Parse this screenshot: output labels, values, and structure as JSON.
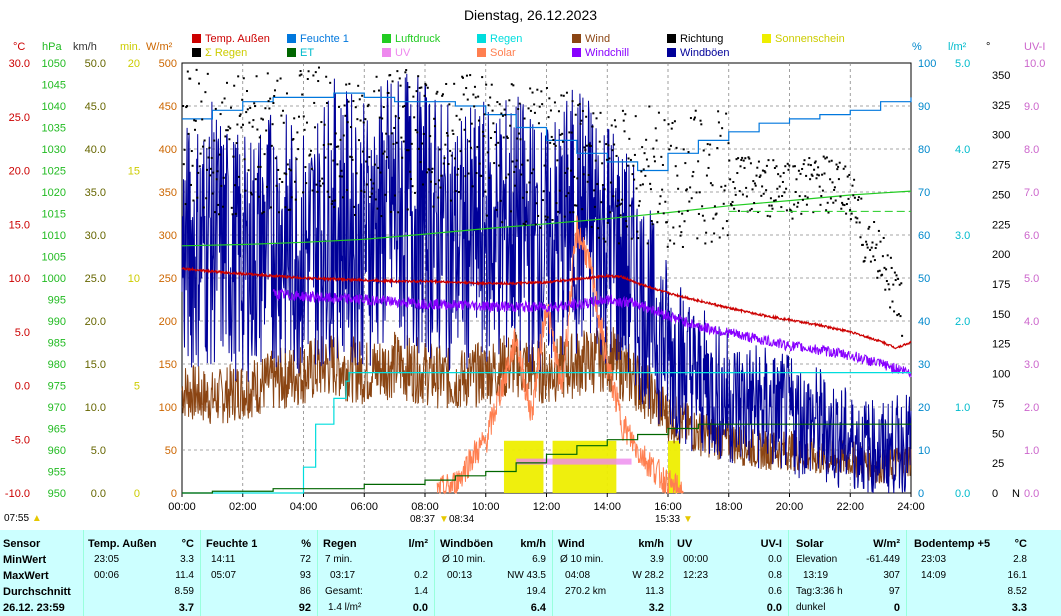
{
  "title": "Dienstag, 26.12.2023",
  "legend": [
    {
      "label": "Temp. Außen",
      "color": "#cc0000"
    },
    {
      "label": "Feuchte 1",
      "color": "#0077dd"
    },
    {
      "label": "Luftdruck",
      "color": "#22cc22"
    },
    {
      "label": "Regen",
      "color": "#00dddd"
    },
    {
      "label": "Wind",
      "color": "#8b4513"
    },
    {
      "label": "Richtung",
      "color": "#000000"
    },
    {
      "label": "Sonnenschein",
      "color": "#eeee00"
    },
    {
      "label": "Σ Regen",
      "color": "#000000"
    },
    {
      "label": "ET",
      "color": "#006600"
    },
    {
      "label": "UV",
      "color": "#ee88ee"
    },
    {
      "label": "Solar",
      "color": "#ff7f50"
    },
    {
      "label": "Windchill",
      "color": "#8800ff"
    },
    {
      "label": "Windböen",
      "color": "#000099"
    }
  ],
  "axis_units": {
    "temp": "°C",
    "hpa": "hPa",
    "kmh": "km/h",
    "min": "min.",
    "wm2": "W/m²",
    "pct": "%",
    "lm2": "l/m²",
    "deg": "°",
    "uvi": "UV-I"
  },
  "colors": {
    "temp": "#cc0000",
    "hpa": "#22bb22",
    "kmh": "#666600",
    "min": "#cccc00",
    "wm2": "#cc6600",
    "pct": "#0088cc",
    "lm2": "#00bbcc",
    "uvi": "#cc66cc"
  },
  "footer": {
    "sunrise_time": "07:55",
    "marker_1": "08:37",
    "marker_2": "08:34",
    "marker_3": "15:33"
  },
  "chart_data": {
    "type": "line",
    "title": "Dienstag, 26.12.2023",
    "x_range": [
      "00:00",
      "24:00"
    ],
    "x_ticks": [
      "00:00",
      "02:00",
      "04:00",
      "06:00",
      "08:00",
      "10:00",
      "12:00",
      "14:00",
      "16:00",
      "18:00",
      "20:00",
      "22:00",
      "24:00"
    ],
    "axes": {
      "temp": {
        "unit": "°C",
        "range": [
          -10,
          30
        ],
        "ticks": [
          "30.0",
          "25.0",
          "20.0",
          "15.0",
          "10.0",
          "5.0",
          "0.0",
          "-5.0",
          "-10.0"
        ]
      },
      "hpa": {
        "unit": "hPa",
        "range": [
          950,
          1050
        ],
        "ticks": [
          "1050",
          "1045",
          "1040",
          "1035",
          "1030",
          "1025",
          "1020",
          "1015",
          "1010",
          "1005",
          "1000",
          "995",
          "990",
          "985",
          "980",
          "975",
          "970",
          "965",
          "960",
          "955",
          "950"
        ]
      },
      "kmh": {
        "unit": "km/h",
        "range": [
          0,
          50
        ],
        "ticks": [
          "50.0",
          "45.0",
          "40.0",
          "35.0",
          "30.0",
          "25.0",
          "20.0",
          "15.0",
          "10.0",
          "5.0",
          "0.0"
        ]
      },
      "min": {
        "unit": "min.",
        "range": [
          0,
          20
        ],
        "ticks": [
          "20",
          "15",
          "10",
          "5",
          "0"
        ]
      },
      "wm2": {
        "unit": "W/m²",
        "range": [
          0,
          500
        ],
        "ticks": [
          "500",
          "450",
          "400",
          "350",
          "300",
          "250",
          "200",
          "150",
          "100",
          "50",
          "0"
        ]
      },
      "pct": {
        "unit": "%",
        "range": [
          0,
          100
        ],
        "ticks": [
          "100",
          "90",
          "80",
          "70",
          "60",
          "50",
          "40",
          "30",
          "20",
          "10",
          "0"
        ]
      },
      "lm2": {
        "unit": "l/m²",
        "range": [
          0,
          5
        ],
        "ticks": [
          "5.0",
          "4.0",
          "3.0",
          "2.0",
          "1.0",
          "0.0"
        ]
      },
      "deg": {
        "unit": "°",
        "range": [
          0,
          360
        ],
        "ticks": [
          "350",
          "325",
          "300",
          "275",
          "250",
          "225",
          "200",
          "175",
          "150",
          "125",
          "100",
          "75",
          "50",
          "25",
          "0"
        ],
        "bottom_label": "N"
      },
      "uvi": {
        "unit": "UV-I",
        "range": [
          0,
          10
        ],
        "ticks": [
          "10.0",
          "9.0",
          "8.0",
          "7.0",
          "6.0",
          "5.0",
          "4.0",
          "3.0",
          "2.0",
          "1.0",
          "0.0"
        ]
      }
    },
    "series": [
      {
        "name": "Temp. Außen",
        "axis": "temp",
        "x": [
          0,
          1,
          2,
          3,
          4,
          5,
          6,
          7,
          8,
          9,
          10,
          11,
          12,
          13,
          14,
          14.5,
          15,
          16,
          17,
          18,
          19,
          20,
          21,
          22,
          23,
          23.5,
          24
        ],
        "y": [
          10.9,
          10.6,
          10.4,
          10.2,
          10.0,
          9.9,
          9.8,
          9.7,
          9.7,
          9.6,
          9.5,
          9.5,
          9.6,
          9.9,
          10.2,
          10.1,
          9.5,
          8.6,
          7.9,
          7.2,
          6.6,
          6.1,
          5.6,
          5.0,
          4.1,
          3.5,
          4.0
        ]
      },
      {
        "name": "Feuchte 1",
        "axis": "pct",
        "x": [
          0,
          1,
          2,
          3,
          4,
          5,
          6,
          7,
          8,
          9,
          10,
          11,
          12,
          13,
          14,
          15,
          16,
          17,
          18,
          19,
          20,
          21,
          22,
          23,
          24
        ],
        "y": [
          87,
          89,
          91,
          92,
          92,
          93,
          92,
          91,
          91,
          90,
          88,
          85,
          82,
          79,
          77,
          75,
          79,
          82,
          84,
          86,
          87,
          88,
          89,
          91,
          92
        ]
      },
      {
        "name": "Luftdruck",
        "axis": "hpa",
        "x": [
          0,
          2,
          4,
          6,
          8,
          10,
          12,
          14,
          16,
          18,
          20,
          22,
          24
        ],
        "y": [
          1007.5,
          1007.8,
          1008.3,
          1009.0,
          1010.2,
          1011.5,
          1012.6,
          1013.8,
          1015.2,
          1016.8,
          1018.0,
          1019.3,
          1020.2
        ]
      },
      {
        "name": "Regen",
        "axis": "lm2",
        "x": [
          0,
          3.5,
          4.0,
          4.4,
          5.0,
          5.4,
          5.5,
          24
        ],
        "y": [
          0,
          0,
          0.3,
          0.8,
          1.1,
          1.3,
          1.4,
          1.4
        ]
      },
      {
        "name": "ET",
        "axis": "lm2",
        "x": [
          0,
          1,
          3,
          6,
          8,
          9,
          10,
          11,
          12,
          13,
          14,
          15,
          16,
          17,
          22,
          24
        ],
        "y": [
          0,
          0.02,
          0.05,
          0.1,
          0.15,
          0.2,
          0.25,
          0.35,
          0.45,
          0.55,
          0.62,
          0.68,
          0.75,
          0.8,
          0.8,
          0.8
        ]
      },
      {
        "name": "Windchill",
        "axis": "temp",
        "x": [
          3,
          4,
          5,
          6,
          7,
          8,
          9,
          10,
          11,
          12,
          13,
          14,
          15,
          16,
          17,
          18,
          19,
          20,
          21,
          22,
          23,
          24
        ],
        "y": [
          8.5,
          8.3,
          8.1,
          8.0,
          7.8,
          7.6,
          7.5,
          7.4,
          7.3,
          7.3,
          7.5,
          8.0,
          7.6,
          6.5,
          5.5,
          4.9,
          4.3,
          3.7,
          3.3,
          2.8,
          2.0,
          1.2
        ]
      },
      {
        "name": "Solar",
        "axis": "wm2",
        "x": [
          8.4,
          9,
          9.5,
          10,
          10.5,
          11,
          11.5,
          12,
          12.5,
          13,
          13.3,
          13.5,
          14,
          14.5,
          15,
          15.5,
          16,
          16.5
        ],
        "y": [
          0,
          10,
          40,
          60,
          120,
          180,
          90,
          220,
          120,
          307,
          280,
          250,
          150,
          80,
          50,
          30,
          10,
          0
        ]
      },
      {
        "name": "Wind",
        "axis": "kmh",
        "x": [
          0,
          1,
          2,
          3,
          4,
          5,
          6,
          7,
          8,
          9,
          10,
          11,
          12,
          13,
          14,
          15,
          16,
          17,
          18,
          19,
          20,
          21,
          22,
          23,
          24
        ],
        "y": [
          12,
          11,
          12,
          13,
          14,
          15,
          14,
          15,
          14,
          13,
          14,
          15,
          14,
          15,
          16,
          13,
          9,
          7,
          6,
          5,
          5,
          4,
          4,
          3,
          4
        ]
      },
      {
        "name": "Windböen",
        "axis": "kmh",
        "x": [
          0,
          1,
          2,
          3,
          4,
          5,
          6,
          7,
          8,
          9,
          10,
          11,
          12,
          13,
          14,
          15,
          16,
          17,
          18,
          19,
          20,
          21,
          22,
          23,
          24
        ],
        "y": [
          28,
          30,
          27,
          30,
          28,
          32,
          30,
          33,
          32,
          29,
          30,
          31,
          28,
          32,
          30,
          24,
          17,
          13,
          11,
          10,
          9,
          8,
          6,
          5,
          6
        ]
      },
      {
        "name": "Richtung",
        "axis": "deg",
        "x": [
          0,
          2,
          4,
          6,
          8,
          10,
          12,
          14,
          16,
          18,
          20,
          21,
          22,
          22.5,
          23,
          23.7
        ],
        "y": [
          300,
          290,
          300,
          290,
          300,
          290,
          280,
          270,
          265,
          260,
          255,
          260,
          250,
          210,
          200,
          150
        ]
      }
    ],
    "sunshine_min": {
      "x_start": [
        10.6,
        12.2,
        16.0
      ],
      "x_end": [
        11.9,
        14.3,
        16.4
      ],
      "y": [
        1.5,
        1.5,
        1.5
      ]
    },
    "uv_index": {
      "x_start": [
        11.0
      ],
      "x_end": [
        14.8
      ],
      "y": [
        0.8
      ]
    }
  },
  "stats": {
    "sensor": {
      "head": "Sensor",
      "min": "MinWert",
      "max": "MaxWert",
      "avg": "Durchschnitt",
      "cur": "26.12. 23:59"
    },
    "temp": {
      "head": "Temp. Außen",
      "unit": "°C",
      "min_t": "23:05",
      "min_v": "3.3",
      "max_t": "00:06",
      "max_v": "11.4",
      "avg_v": "8.59",
      "cur_v": "3.7"
    },
    "hum": {
      "head": "Feuchte 1",
      "unit": "%",
      "min_t": "14:11",
      "min_v": "72",
      "max_t": "05:07",
      "max_v": "93",
      "avg_v": "86",
      "cur_v": "92"
    },
    "rain": {
      "head": "Regen",
      "unit": "l/m²",
      "r1_l": "7 min.",
      "r2_l": "03:17",
      "r2_v": "0.2",
      "r3_l": "Gesamt:",
      "r3_v": "1.4",
      "cur_l": "1.4 l/m²",
      "cur_v": "0.0"
    },
    "gust": {
      "head": "Windböen",
      "unit": "km/h",
      "r1_l": "Ø 10 min.",
      "r1_v": "6.9",
      "r2_l": "00:13",
      "r2_v": "NW 43.5",
      "r3_v": "19.4",
      "cur_v": "6.4"
    },
    "wind": {
      "head": "Wind",
      "unit": "km/h",
      "r1_l": "Ø 10 min.",
      "r1_v": "3.9",
      "r2_l": "04:08",
      "r2_v": "W 28.2",
      "r3_l": "270.2 km",
      "r3_v": "11.3",
      "cur_v": "3.2"
    },
    "uv": {
      "head": "UV",
      "unit": "UV-I",
      "r1_l": "00:00",
      "r1_v": "0.0",
      "r2_l": "12:23",
      "r2_v": "0.8",
      "r3_v": "0.6",
      "cur_v": "0.0"
    },
    "solar": {
      "head": "Solar",
      "unit": "W/m²",
      "r1_l": "Elevation",
      "r1_v": "-61.449",
      "r2_l": "13:19",
      "r2_v": "307",
      "r3_l": "Tag:3:36 h",
      "r3_v": "97",
      "cur_l": "dunkel",
      "cur_v": "0"
    },
    "soil": {
      "head": "Bodentemp +5",
      "unit": "°C",
      "r1_l": "23:03",
      "r1_v": "2.8",
      "r2_l": "14:09",
      "r2_v": "16.1",
      "r3_v": "8.52",
      "cur_v": "3.3"
    }
  }
}
